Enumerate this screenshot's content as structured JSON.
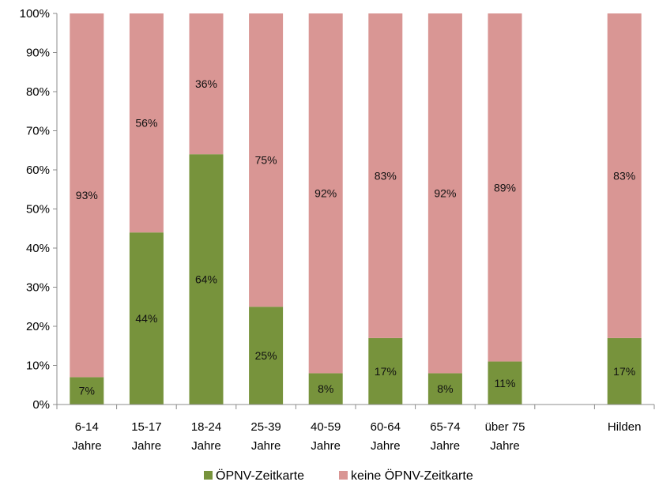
{
  "chart_data": {
    "type": "bar",
    "stacked": true,
    "percent_stacked": true,
    "categories": [
      [
        "6-14",
        "Jahre"
      ],
      [
        "15-17",
        "Jahre"
      ],
      [
        "18-24",
        "Jahre"
      ],
      [
        "25-39",
        "Jahre"
      ],
      [
        "40-59",
        "Jahre"
      ],
      [
        "60-64",
        "Jahre"
      ],
      [
        "65-74",
        "Jahre"
      ],
      [
        "über 75",
        "Jahre"
      ],
      [
        "",
        ""
      ],
      [
        "Hilden",
        ""
      ]
    ],
    "series": [
      {
        "name": "ÖPNV-Zeitkarte",
        "color": "#77933c",
        "values": [
          7,
          44,
          64,
          25,
          8,
          17,
          8,
          11,
          null,
          17
        ],
        "labels": [
          "7%",
          "44%",
          "64%",
          "25%",
          "8%",
          "17%",
          "8%",
          "11%",
          "",
          "17%"
        ]
      },
      {
        "name": "keine ÖPNV-Zeitkarte",
        "color": "#d99694",
        "values": [
          93,
          56,
          36,
          75,
          92,
          83,
          92,
          89,
          null,
          83
        ],
        "labels": [
          "93%",
          "56%",
          "36%",
          "75%",
          "92%",
          "83%",
          "92%",
          "89%",
          "",
          "83%"
        ]
      }
    ],
    "y_ticks": [
      "0%",
      "10%",
      "20%",
      "30%",
      "40%",
      "50%",
      "60%",
      "70%",
      "80%",
      "90%",
      "100%"
    ],
    "ylim": [
      0,
      100
    ],
    "title": "",
    "xlabel": "",
    "ylabel": "",
    "grid": false,
    "legend_position": "bottom"
  }
}
